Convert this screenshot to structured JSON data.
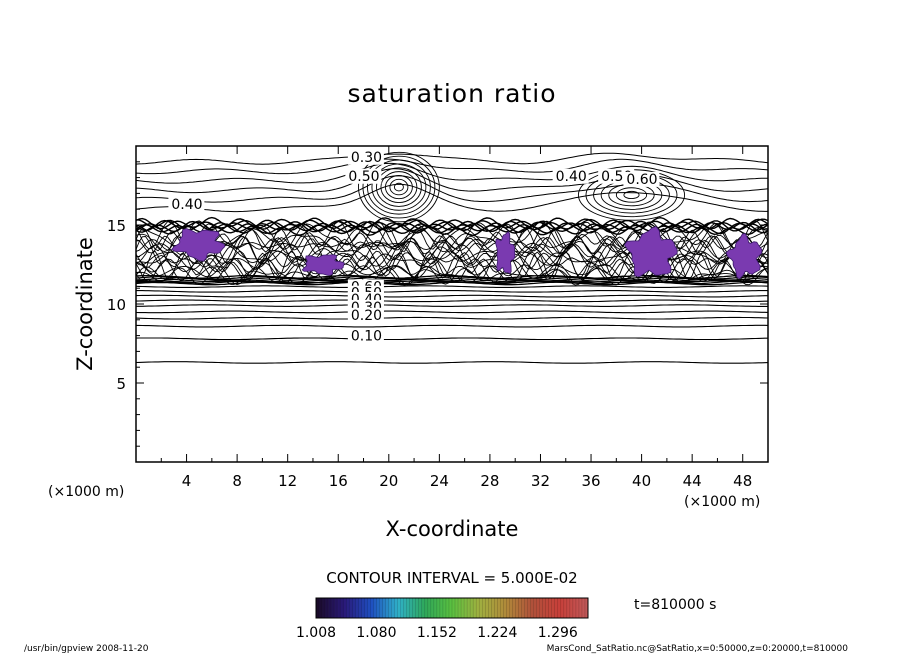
{
  "chart_data": {
    "type": "contour",
    "title": "saturation ratio",
    "xlabel": "X-coordinate",
    "ylabel": "Z-coordinate",
    "x_unit": "(×1000 m)",
    "z_unit": "(×1000 m)",
    "xlim": [
      0,
      50
    ],
    "ylim": [
      0,
      20
    ],
    "x_ticks": [
      4,
      8,
      12,
      16,
      20,
      24,
      28,
      32,
      36,
      40,
      44,
      48
    ],
    "y_ticks": [
      5,
      10,
      15
    ],
    "grid": false,
    "contour_interval_text": "CONTOUR INTERVAL = 5.000E-02",
    "contour_labels": [
      {
        "text": "0.30",
        "x": 17.0,
        "z": 19.0
      },
      {
        "text": "0.50",
        "x": 16.8,
        "z": 17.8
      },
      {
        "text": "0.40",
        "x": 33.2,
        "z": 17.8
      },
      {
        "text": "0.50",
        "x": 36.8,
        "z": 17.8
      },
      {
        "text": "0.60",
        "x": 38.8,
        "z": 17.6
      },
      {
        "text": "0.40",
        "x": 2.8,
        "z": 16.0
      },
      {
        "text": "0.60",
        "x": 17.0,
        "z": 10.8
      },
      {
        "text": "0.50",
        "x": 17.0,
        "z": 10.4
      },
      {
        "text": "0.40",
        "x": 17.0,
        "z": 10.0
      },
      {
        "text": "0.30",
        "x": 17.0,
        "z": 9.5
      },
      {
        "text": "0.20",
        "x": 17.0,
        "z": 9.0
      },
      {
        "text": "0.10",
        "x": 17.0,
        "z": 7.7
      }
    ],
    "horizontal_contour_levels_z": [
      6.3,
      7.8,
      8.6,
      9.1,
      9.5,
      9.9,
      10.2,
      10.5,
      10.8,
      11.1,
      11.4
    ],
    "supersaturated_regions": [
      {
        "x": 5.0,
        "z": 13.8,
        "rx": 1.8,
        "rz": 0.9
      },
      {
        "x": 14.8,
        "z": 12.5,
        "rx": 1.5,
        "rz": 0.6
      },
      {
        "x": 29.2,
        "z": 13.2,
        "rx": 0.7,
        "rz": 1.2
      },
      {
        "x": 40.8,
        "z": 13.2,
        "rx": 1.8,
        "rz": 1.4
      },
      {
        "x": 48.2,
        "z": 13.0,
        "rx": 1.2,
        "rz": 1.2
      }
    ],
    "colorbar": {
      "labels": [
        "1.008",
        "1.080",
        "1.152",
        "1.224",
        "1.296"
      ],
      "min": 1.008,
      "max": 1.332,
      "colors": [
        "#1a0a2a",
        "#2a1a7a",
        "#1f4fc0",
        "#2fb0c8",
        "#2fa85a",
        "#5ac040",
        "#a0b040",
        "#b08a3a",
        "#b0503a",
        "#c8403a",
        "#c05858"
      ]
    },
    "time_label": "t=810000 s"
  },
  "footer": {
    "left": "/usr/bin/gpview  2008-11-20",
    "right": "MarsCond_SatRatio.nc@SatRatio,x=0:50000,z=0:20000,t=810000"
  }
}
